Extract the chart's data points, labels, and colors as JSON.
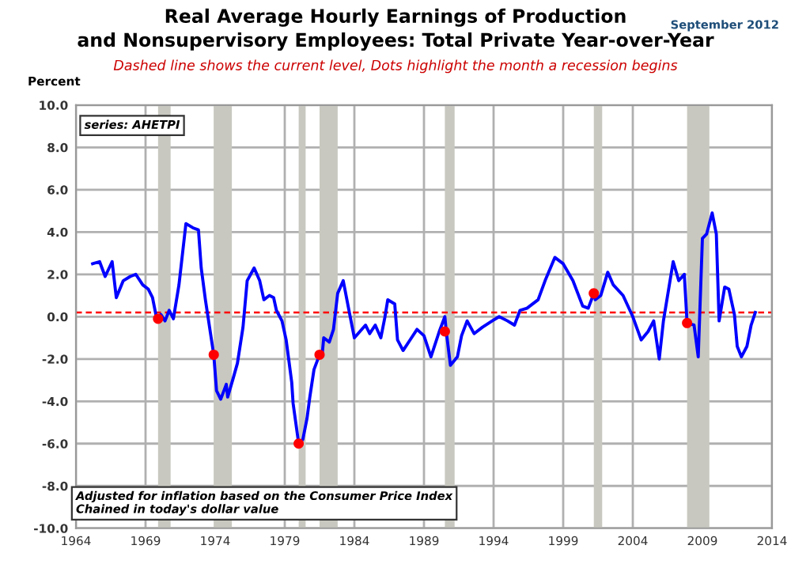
{
  "chart_data": {
    "type": "line",
    "title": "Real Average Hourly Earnings of Production\nand Nonsupervisory Employees: Total Private Year-over-Year",
    "subtitle": "Dashed line shows the current level, Dots highlight the month a recession begins",
    "ylabel": "Percent",
    "annotations": [
      "series: AHETPI",
      "Adjusted for inflation based on the Consumer Price Index\nChained in today's dollar value",
      "September 2012"
    ],
    "xlim": [
      1964,
      2014
    ],
    "xticks": [
      1964,
      1969,
      1974,
      1979,
      1984,
      1989,
      1994,
      1999,
      2004,
      2009,
      2014
    ],
    "ylim": [
      -10,
      10
    ],
    "yticks": [
      {
        "value": -10,
        "label": "-10.0"
      },
      {
        "value": -8,
        "label": "-8.0"
      },
      {
        "value": -6,
        "label": "-6.0"
      },
      {
        "value": -4,
        "label": "-4.0"
      },
      {
        "value": -2,
        "label": "-2.0"
      },
      {
        "value": 0,
        "label": "0.0"
      },
      {
        "value": 2,
        "label": "2.0"
      },
      {
        "value": 4,
        "label": "4.0"
      },
      {
        "value": 6,
        "label": "6.0"
      },
      {
        "value": 8,
        "label": "8.0"
      },
      {
        "value": 10,
        "label": "10.0"
      }
    ],
    "grid": true,
    "legend": false,
    "marker": "none",
    "line_style": "solid",
    "series": [
      {
        "color": "#0000ff",
        "x": [
          1965.2,
          1965.7,
          1966.1,
          1966.6,
          1966.9,
          1967.4,
          1967.9,
          1968.3,
          1968.8,
          1969.2,
          1969.5,
          1969.8,
          1970.1,
          1970.4,
          1970.7,
          1971.0,
          1971.4,
          1971.9,
          1972.4,
          1972.8,
          1973.0,
          1973.3,
          1973.9,
          1974.1,
          1974.4,
          1974.8,
          1974.9,
          1975.3,
          1975.6,
          1976.0,
          1976.3,
          1976.8,
          1977.2,
          1977.5,
          1977.9,
          1978.2,
          1978.4,
          1978.8,
          1979.1,
          1979.5,
          1979.6,
          1980.0,
          1980.3,
          1980.6,
          1980.8,
          1981.1,
          1981.5,
          1981.7,
          1981.8,
          1982.2,
          1982.5,
          1982.8,
          1983.2,
          1983.7,
          1984.0,
          1984.4,
          1984.8,
          1985.1,
          1985.5,
          1985.9,
          1986.2,
          1986.4,
          1986.9,
          1987.1,
          1987.5,
          1988.0,
          1988.5,
          1989.0,
          1989.5,
          1990.1,
          1990.5,
          1990.6,
          1990.9,
          1991.4,
          1991.7,
          1992.1,
          1992.6,
          1993.2,
          1993.9,
          1994.4,
          1995.0,
          1995.5,
          1995.9,
          1996.4,
          1997.2,
          1997.7,
          1998.4,
          1999.0,
          1999.7,
          2000.4,
          2000.8,
          2001.2,
          2001.3,
          2001.7,
          2002.2,
          2002.6,
          2003.3,
          2004.0,
          2004.6,
          2005.1,
          2005.5,
          2005.9,
          2006.2,
          2006.9,
          2007.3,
          2007.7,
          2007.9,
          2008.4,
          2008.7,
          2009.0,
          2009.3,
          2009.7,
          2010.0,
          2010.2,
          2010.6,
          2010.9,
          2011.3,
          2011.5,
          2011.8,
          2012.2,
          2012.5,
          2012.8
        ],
        "values": [
          2.5,
          2.6,
          1.9,
          2.6,
          0.9,
          1.7,
          1.9,
          2.0,
          1.5,
          1.3,
          0.9,
          -0.1,
          0.1,
          -0.2,
          0.3,
          -0.1,
          1.5,
          4.4,
          4.2,
          4.1,
          2.3,
          0.8,
          -1.8,
          -3.5,
          -3.9,
          -3.2,
          -3.8,
          -2.9,
          -2.2,
          -0.5,
          1.7,
          2.3,
          1.7,
          0.8,
          1.0,
          0.9,
          0.3,
          -0.2,
          -1.1,
          -3.1,
          -4.1,
          -6.0,
          -5.8,
          -4.8,
          -3.8,
          -2.5,
          -1.8,
          -1.7,
          -1.0,
          -1.2,
          -0.6,
          1.1,
          1.7,
          0.0,
          -1.0,
          -0.7,
          -0.4,
          -0.8,
          -0.4,
          -1.0,
          0.0,
          0.8,
          0.6,
          -1.1,
          -1.6,
          -1.1,
          -0.6,
          -0.9,
          -1.9,
          -0.7,
          0.0,
          -0.7,
          -2.3,
          -1.9,
          -0.9,
          -0.2,
          -0.8,
          -0.5,
          -0.2,
          0.0,
          -0.2,
          -0.4,
          0.3,
          0.4,
          0.8,
          1.7,
          2.8,
          2.5,
          1.7,
          0.5,
          0.4,
          1.1,
          0.8,
          1.0,
          2.1,
          1.5,
          1.0,
          0.0,
          -1.1,
          -0.7,
          -0.2,
          -2.0,
          -0.2,
          2.6,
          1.7,
          2.0,
          -0.3,
          -0.4,
          -1.9,
          3.7,
          3.9,
          4.9,
          3.9,
          -0.2,
          1.4,
          1.3,
          0.1,
          -1.4,
          -1.9,
          -1.4,
          -0.4,
          0.2
        ]
      },
      {
        "type": "scatter",
        "color": "#ff0000",
        "marker": "circle",
        "x": [
          1969.9,
          1973.9,
          1980.0,
          1981.5,
          1990.5,
          2001.2,
          2007.9
        ],
        "values": [
          -0.1,
          -1.8,
          -6.0,
          -1.8,
          -0.7,
          1.1,
          -0.3
        ]
      }
    ],
    "ref_lines": [
      {
        "axis": "y",
        "value": 0.2,
        "color": "#ff0000",
        "line_style": "dashed"
      }
    ],
    "bands": [
      {
        "axis": "x",
        "from": 1969.9,
        "to": 1970.8,
        "color": "#c8c8c0"
      },
      {
        "axis": "x",
        "from": 1973.9,
        "to": 1975.2,
        "color": "#c8c8c0"
      },
      {
        "axis": "x",
        "from": 1980.0,
        "to": 1980.5,
        "color": "#c8c8c0"
      },
      {
        "axis": "x",
        "from": 1981.5,
        "to": 1982.8,
        "color": "#c8c8c0"
      },
      {
        "axis": "x",
        "from": 1990.5,
        "to": 1991.2,
        "color": "#c8c8c0"
      },
      {
        "axis": "x",
        "from": 2001.2,
        "to": 2001.8,
        "color": "#c8c8c0"
      },
      {
        "axis": "x",
        "from": 2007.9,
        "to": 2009.5,
        "color": "#c8c8c0"
      }
    ]
  }
}
